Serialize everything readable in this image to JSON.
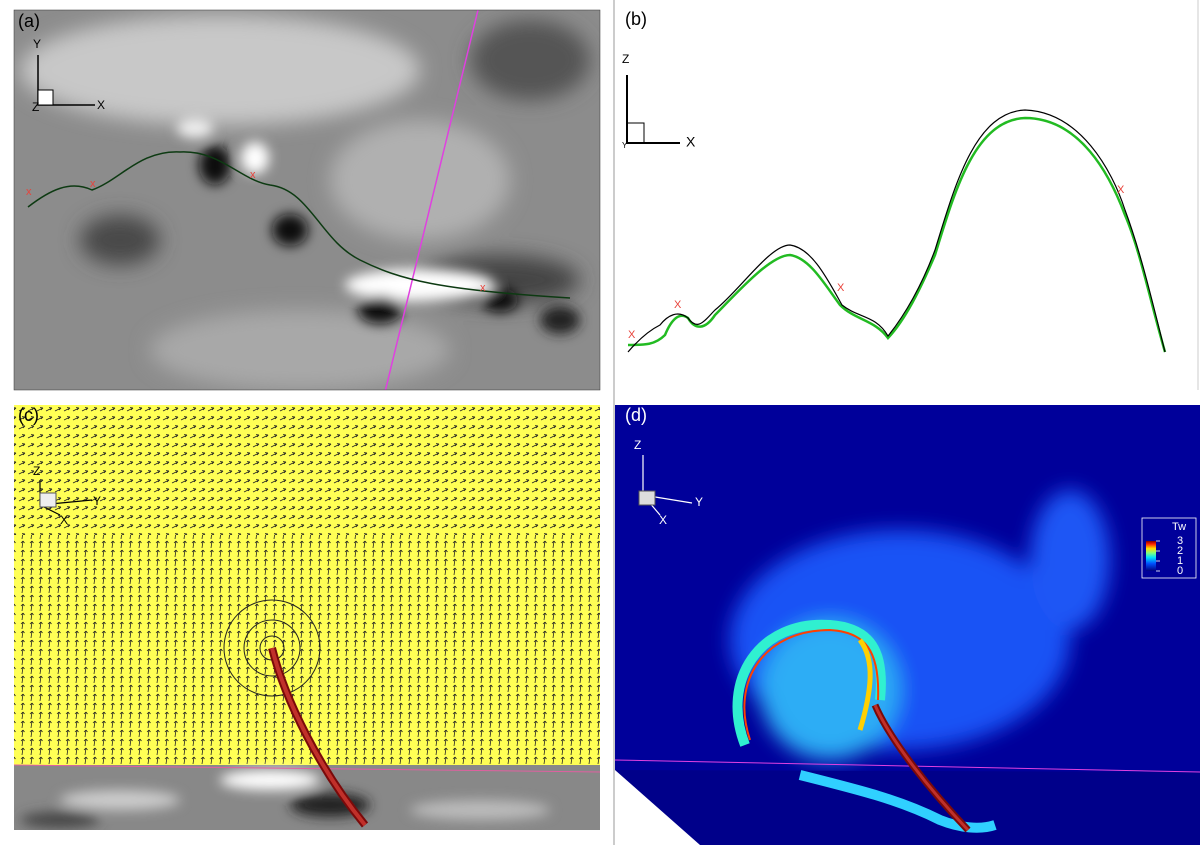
{
  "panels": [
    {
      "label": "(a)",
      "axes": [
        "Y",
        "Z",
        "X"
      ],
      "markers": [
        "x",
        "x",
        "x",
        "x"
      ]
    },
    {
      "label": "(b)",
      "axes": [
        "Z",
        "Y",
        "X"
      ],
      "markers": [
        "X",
        "X",
        "X",
        "X"
      ]
    },
    {
      "label": "(c)",
      "axes": [
        "Z",
        "Y",
        "X"
      ]
    },
    {
      "label": "(d)",
      "axes": [
        "Z",
        "Y",
        "X"
      ]
    }
  ],
  "colorbar": {
    "title": "Tw",
    "range": [
      0,
      3
    ],
    "ticks": [
      3,
      2,
      1,
      0
    ]
  }
}
